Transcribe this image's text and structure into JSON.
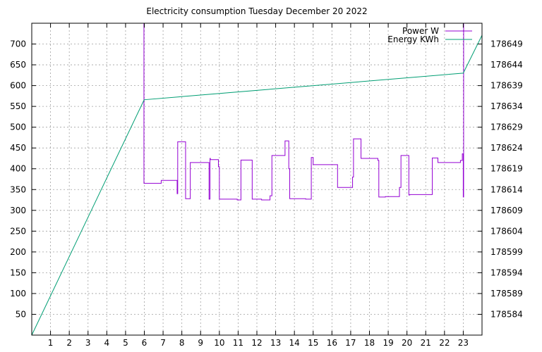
{
  "chart_data": {
    "type": "line",
    "title": "Electricity consumption Tuesday December 20 2022",
    "xlabel": "",
    "ylabel": "",
    "y2label": "",
    "xlim": [
      0,
      24
    ],
    "ylim": [
      0,
      750
    ],
    "y2lim": [
      178579,
      178654
    ],
    "x_ticks": [
      1,
      2,
      3,
      4,
      5,
      6,
      7,
      8,
      9,
      10,
      11,
      12,
      13,
      14,
      15,
      16,
      17,
      18,
      19,
      20,
      21,
      22,
      23
    ],
    "y_ticks": [
      50,
      100,
      150,
      200,
      250,
      300,
      350,
      400,
      450,
      500,
      550,
      600,
      650,
      700
    ],
    "y2_ticks": [
      178584,
      178589,
      178594,
      178599,
      178604,
      178609,
      178614,
      178619,
      178624,
      178629,
      178634,
      178639,
      178644,
      178649
    ],
    "grid": true,
    "legend_position": "top-right",
    "series": [
      {
        "name": "Power W",
        "axis": "left",
        "color": "#9400d3",
        "step": true,
        "x": [
          5.98,
          5.98,
          6.0,
          6.9,
          6.9,
          7.75,
          7.75,
          7.78,
          7.78,
          8.2,
          8.2,
          8.45,
          8.45,
          9.45,
          9.45,
          9.5,
          9.5,
          9.52,
          9.52,
          9.95,
          9.95,
          10.0,
          10.0,
          10.95,
          10.95,
          11.15,
          11.15,
          11.75,
          11.75,
          12.25,
          12.25,
          12.7,
          12.7,
          12.8,
          12.8,
          13.5,
          13.5,
          13.7,
          13.7,
          13.75,
          13.75,
          14.6,
          14.6,
          14.9,
          14.9,
          15.0,
          15.0,
          16.3,
          16.3,
          17.1,
          17.1,
          17.15,
          17.15,
          17.55,
          17.55,
          18.45,
          18.45,
          18.5,
          18.5,
          18.85,
          18.85,
          19.6,
          19.6,
          19.68,
          19.68,
          20.1,
          20.1,
          20.15,
          20.15,
          21.35,
          21.35,
          21.65,
          21.65,
          22.85,
          22.85,
          22.95,
          22.95,
          23.0,
          23.0,
          23.02,
          23.02,
          23.05
        ],
        "y": [
          750,
          365,
          365,
          365,
          372,
          372,
          340,
          340,
          465,
          465,
          328,
          328,
          415,
          415,
          327,
          327,
          425,
          425,
          422,
          422,
          405,
          405,
          327,
          327,
          325,
          325,
          421,
          421,
          327,
          327,
          325,
          325,
          335,
          335,
          432,
          432,
          467,
          467,
          400,
          400,
          328,
          328,
          327,
          327,
          427,
          427,
          410,
          410,
          355,
          355,
          380,
          380,
          472,
          472,
          425,
          425,
          420,
          420,
          332,
          332,
          333,
          333,
          355,
          355,
          432,
          432,
          337,
          337,
          338,
          338,
          426,
          426,
          415,
          415,
          420,
          420,
          436,
          436,
          332,
          332,
          750,
          750
        ]
      },
      {
        "name": "Energy KWh",
        "axis": "right",
        "color": "#009e73",
        "step": false,
        "x": [
          0,
          5.97,
          6.0,
          23.0,
          24.0
        ],
        "y": [
          178579,
          178635.4,
          178635.6,
          178642.0,
          178651.1
        ]
      }
    ]
  }
}
